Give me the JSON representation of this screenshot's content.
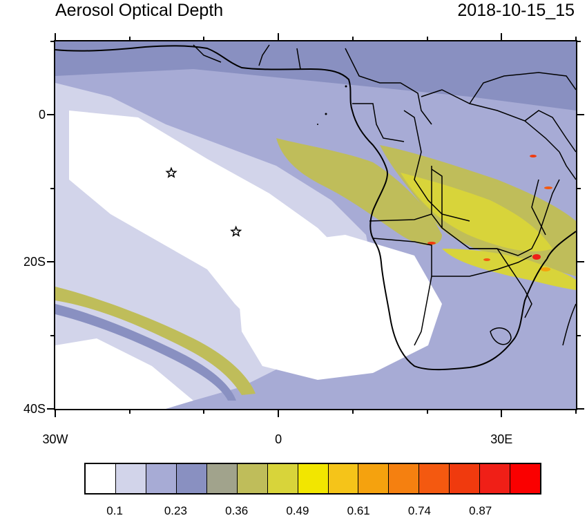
{
  "title_left": "Aerosol Optical Depth",
  "title_right": "2018-10-15_15",
  "map": {
    "projection": "cylindrical equidistant",
    "lon_range": [
      -30,
      40
    ],
    "lat_range": [
      -40,
      10
    ],
    "variable": "Aerosol Optical Depth",
    "markers": [
      {
        "type": "star",
        "lon": -14.4,
        "lat": -7.9
      },
      {
        "type": "star",
        "lon": -5.7,
        "lat": -15.9
      }
    ],
    "y_axis": {
      "ticks": [
        {
          "value": 0,
          "label": "0"
        },
        {
          "value": -20,
          "label": "20S"
        },
        {
          "value": -40,
          "label": "40S"
        }
      ]
    },
    "x_axis": {
      "ticks": [
        {
          "value": -30,
          "label": "30W"
        },
        {
          "value": 0,
          "label": "0"
        },
        {
          "value": 30,
          "label": "30E"
        }
      ]
    }
  },
  "colorbar": {
    "colors": [
      "#ffffff",
      "#d2d4ea",
      "#a7abd5",
      "#8990c1",
      "#a1a38c",
      "#bfbd5a",
      "#d8d43a",
      "#f2e600",
      "#f5c419",
      "#f5a20e",
      "#f58010",
      "#f45910",
      "#f03a0e",
      "#f01f17",
      "#fa0000"
    ],
    "labels": [
      "0.1",
      "0.23",
      "0.36",
      "0.49",
      "0.61",
      "0.74",
      "0.87"
    ]
  }
}
